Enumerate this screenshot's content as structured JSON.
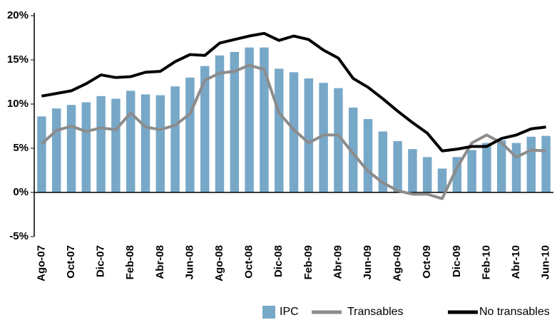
{
  "chart_data": {
    "type": "bar_line",
    "categories": [
      "Ago-07",
      null,
      "Oct-07",
      null,
      "Dic-07",
      null,
      "Feb-08",
      null,
      "Abr-08",
      null,
      "Jun-08",
      null,
      "Ago-08",
      null,
      "Oct-08",
      null,
      "Dic-08",
      null,
      "Feb-09",
      null,
      "Abr-09",
      null,
      "Jun-09",
      null,
      "Ago-09",
      null,
      "Oct-09",
      null,
      "Dic-09",
      null,
      "Feb-10",
      null,
      "Abr-10",
      null,
      "Jun-10"
    ],
    "series": [
      {
        "name": "IPC",
        "type": "bar",
        "color": "#78a8c8",
        "values": [
          8.6,
          9.5,
          9.9,
          10.2,
          10.9,
          10.6,
          11.5,
          11.1,
          11.0,
          12.0,
          13.0,
          14.3,
          15.5,
          15.9,
          16.4,
          16.4,
          14.0,
          13.6,
          12.9,
          12.4,
          11.8,
          9.6,
          8.3,
          6.9,
          5.8,
          4.9,
          4.0,
          2.7,
          4.0,
          4.8,
          5.6,
          5.9,
          5.6,
          6.3,
          6.4
        ]
      },
      {
        "name": "Transables",
        "type": "line",
        "color": "#8c8c8c",
        "values": [
          5.5,
          7.0,
          7.5,
          6.9,
          7.3,
          7.1,
          9.0,
          7.4,
          7.1,
          7.6,
          8.9,
          12.7,
          13.5,
          13.7,
          14.4,
          13.9,
          9.0,
          7.1,
          5.6,
          6.5,
          6.5,
          4.4,
          2.4,
          1.1,
          0.2,
          -0.2,
          -0.2,
          -0.7,
          2.8,
          5.6,
          6.5,
          5.6,
          4.0,
          4.8,
          4.7
        ]
      },
      {
        "name": "No transables",
        "type": "line",
        "color": "#000000",
        "values": [
          10.9,
          11.2,
          11.5,
          12.3,
          13.3,
          13.0,
          13.1,
          13.6,
          13.7,
          14.8,
          15.6,
          15.5,
          16.9,
          17.3,
          17.7,
          18.0,
          17.2,
          17.7,
          17.3,
          16.1,
          15.2,
          12.9,
          11.9,
          10.6,
          9.2,
          7.9,
          6.7,
          4.7,
          4.9,
          5.2,
          5.2,
          6.1,
          6.5,
          7.2,
          7.4
        ]
      }
    ],
    "ylim": [
      -5,
      20
    ],
    "yticks": [
      {
        "value": -5,
        "label": "-5%"
      },
      {
        "value": 0,
        "label": "0%"
      },
      {
        "value": 5,
        "label": "5%"
      },
      {
        "value": 10,
        "label": "10%"
      },
      {
        "value": 15,
        "label": "15%"
      },
      {
        "value": 20,
        "label": "20%"
      }
    ],
    "grid": false
  }
}
